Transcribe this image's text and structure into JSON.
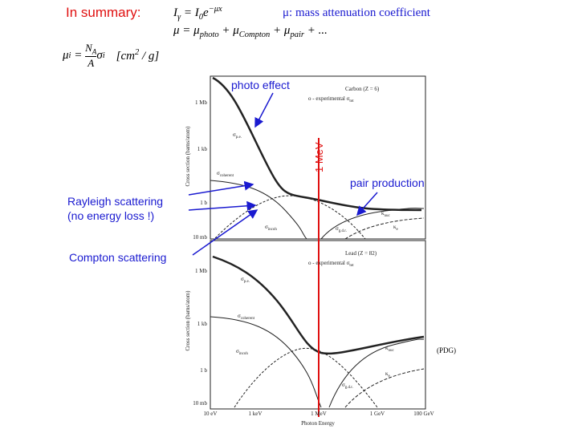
{
  "summary": {
    "heading": "In summary:",
    "equation_1": [
      "I",
      "γ",
      " = I",
      "0",
      "e",
      "−μx"
    ],
    "definition": "μ: mass attenuation coefficient",
    "equation_2": [
      "μ = μ",
      "photo",
      " + μ",
      "Compton",
      " + μ",
      "pair",
      " + ..."
    ],
    "equation_3": [
      "μ",
      "i",
      " = ",
      "N",
      "A",
      "A",
      "σ",
      "i"
    ],
    "unit": [
      "[cm",
      "2",
      " / g]"
    ]
  },
  "annotations": {
    "photo_effect": "photo effect",
    "energy_line": "1 MeV",
    "pair_production": "pair production",
    "rayleigh": [
      "Rayleigh scattering",
      "(no energy loss !)"
    ],
    "compton": "Compton scattering",
    "source": "(PDG)"
  },
  "figure": {
    "y_axis_title": "Cross section (barns/atom)",
    "x_axis_title": "Photon Energy",
    "x_tick_labels": [
      "10 eV",
      "1 keV",
      "1 MeV",
      "1 GeV",
      "100 GeV"
    ],
    "panels": [
      {
        "element": "Carbon (Z = 6)",
        "legend": [
          "o - experimental σ",
          "tot"
        ],
        "y_tick_labels": [
          "1 Mb",
          "1 kb",
          "1 b",
          "10 mb"
        ],
        "curve_labels": [
          [
            "σ",
            "p.e."
          ],
          [
            "σ",
            "coherent"
          ],
          [
            "σ",
            "incoh"
          ],
          [
            "σ",
            "g.d.r."
          ],
          [
            "κ",
            "nuc"
          ],
          [
            "κ",
            "e"
          ]
        ]
      },
      {
        "element": "Lead (Z = 82)",
        "legend": [
          "o - experimental σ",
          "tot"
        ],
        "y_tick_labels": [
          "1 Mb",
          "1 kb",
          "1 b",
          "10 mb"
        ],
        "curve_labels": [
          [
            "σ",
            "p.e."
          ],
          [
            "σ",
            "coherent"
          ],
          [
            "σ",
            "incoh"
          ],
          [
            "σ",
            "g.d.r."
          ],
          [
            "κ",
            "nuc"
          ],
          [
            "κ",
            "e"
          ]
        ]
      }
    ]
  }
}
